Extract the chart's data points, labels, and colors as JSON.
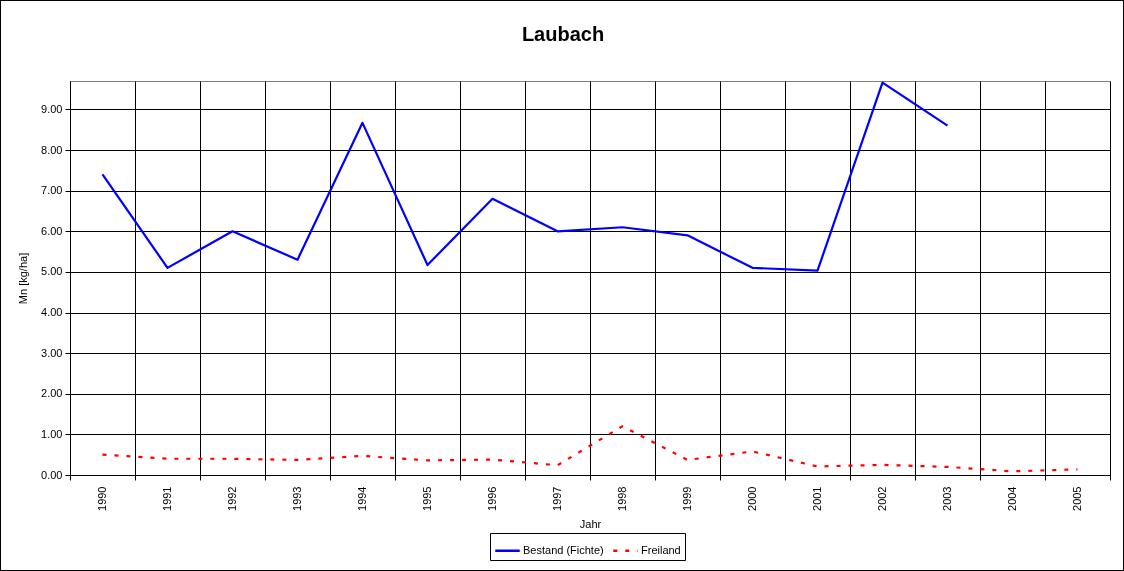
{
  "chart_data": {
    "type": "line",
    "title": "Laubach",
    "xlabel": "Jahr",
    "ylabel": "Mn [kg/ha]",
    "categories": [
      "1990",
      "1991",
      "1992",
      "1993",
      "1994",
      "1995",
      "1996",
      "1997",
      "1998",
      "1999",
      "2000",
      "2001",
      "2002",
      "2003",
      "2004",
      "2005"
    ],
    "series": [
      {
        "name": "Bestand (Fichte)",
        "color": "#0000ff",
        "line_style": "solid",
        "values": [
          7.4,
          5.1,
          6.0,
          5.3,
          8.67,
          5.17,
          6.8,
          6.0,
          6.1,
          5.9,
          5.1,
          5.03,
          9.66,
          8.6,
          null,
          null
        ]
      },
      {
        "name": "Freiland",
        "color": "#ff0000",
        "line_style": "dashed",
        "values": [
          0.5,
          0.4,
          0.4,
          0.37,
          0.47,
          0.36,
          0.38,
          0.24,
          1.2,
          0.37,
          0.58,
          0.21,
          0.25,
          0.2,
          0.09,
          0.14
        ]
      }
    ],
    "ylim": [
      0,
      9.7
    ],
    "yticks": [
      {
        "value": 0,
        "label": "0.00"
      },
      {
        "value": 1,
        "label": "1.00"
      },
      {
        "value": 2,
        "label": "2.00"
      },
      {
        "value": 3,
        "label": "3.00"
      },
      {
        "value": 4,
        "label": "4.00"
      },
      {
        "value": 5,
        "label": "5.00"
      },
      {
        "value": 6,
        "label": "6.00"
      },
      {
        "value": 7,
        "label": "7.00"
      },
      {
        "value": 8,
        "label": "8.00"
      },
      {
        "value": 9,
        "label": "9.00"
      }
    ],
    "grid": true,
    "legend": "bottom"
  }
}
